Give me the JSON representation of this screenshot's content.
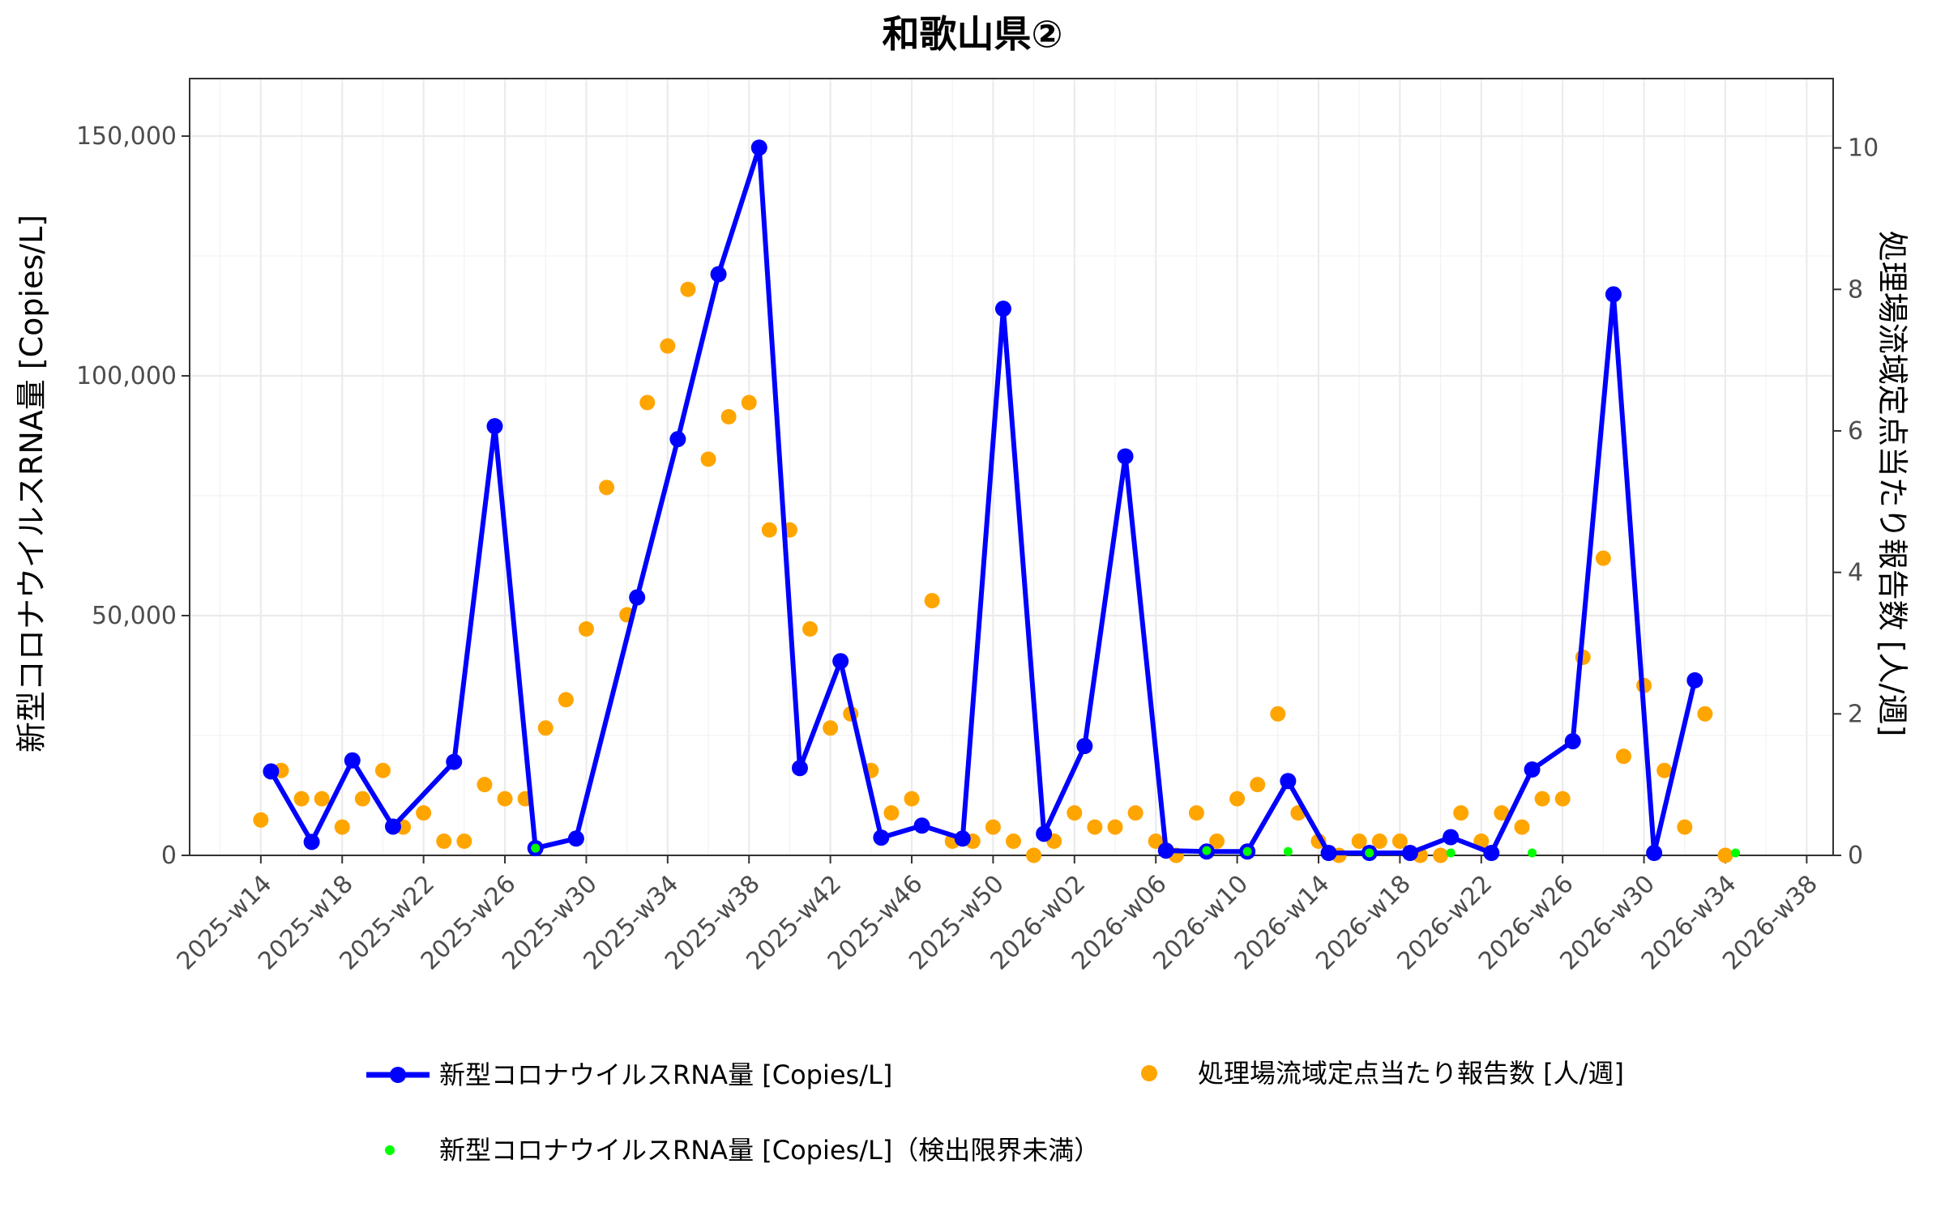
{
  "chart_data": {
    "type": "line",
    "title": "和歌山県②",
    "ylabel_left": "新型コロナウイルスRNA量 [Copies/L]",
    "ylabel_right": "処理場流域定点当たり報告数 [人/週]",
    "y_left_ticks": [
      0,
      50000,
      100000,
      150000
    ],
    "y_left_tick_labels": [
      "0",
      "50,000",
      "100,000",
      "150,000"
    ],
    "y_left_range": [
      0,
      162000
    ],
    "y_right_ticks": [
      0,
      2,
      4,
      6,
      8,
      10
    ],
    "y_right_tick_labels": [
      "0",
      "2",
      "4",
      "6",
      "8",
      "10"
    ],
    "y_right_range": [
      0,
      10.98
    ],
    "x_range": [
      -3.5,
      77.3
    ],
    "x_ticks": [
      0,
      4,
      8,
      12,
      16,
      20,
      24,
      28,
      32,
      36,
      40,
      44,
      48,
      52,
      56,
      60,
      64,
      68,
      72,
      76
    ],
    "x_tick_labels": [
      "2025-w14",
      "2025-w18",
      "2025-w22",
      "2025-w26",
      "2025-w30",
      "2025-w34",
      "2025-w38",
      "2025-w42",
      "2025-w46",
      "2025-w50",
      "2026-w02",
      "2026-w06",
      "2026-w10",
      "2026-w14",
      "2026-w18",
      "2026-w22",
      "2026-w26",
      "2026-w30",
      "2026-w34",
      "2026-w38"
    ],
    "grid": true,
    "legend_position": "bottom",
    "series": [
      {
        "name": "新型コロナウイルスRNA量 [Copies/L]",
        "axis": "left",
        "color": "#0000ff",
        "style": "line+points",
        "x": [
          0.5,
          2.5,
          4.5,
          6.5,
          9.5,
          11.5,
          13.5,
          15.5,
          18.5,
          20.5,
          22.5,
          24.5,
          26.5,
          28.5,
          30.5,
          32.5,
          34.5,
          36.5,
          38.5,
          40.5,
          42.5,
          44.5,
          46.5,
          48.5,
          50.5,
          52.5,
          54.5,
          56.5,
          58.5,
          60.5,
          62.5,
          64.5,
          66.5,
          68.5,
          70.5,
          72.5
        ],
        "y": [
          17500,
          2800,
          19800,
          6000,
          19500,
          89500,
          1500,
          3500,
          53800,
          86800,
          121200,
          147600,
          18200,
          40500,
          3700,
          6200,
          3500,
          114000,
          4500,
          22800,
          83200,
          1000,
          800,
          800,
          15500,
          500,
          500,
          500,
          3800,
          500,
          17900,
          23800,
          117000,
          500,
          36500,
          null
        ]
      },
      {
        "name": "新型コロナウイルスRNA量 [Copies/L]（検出限界未満）",
        "axis": "left",
        "color": "#00ff00",
        "style": "points",
        "x": [
          13.5,
          46.5,
          48.5,
          50.5,
          54.5,
          58.5,
          62.5,
          72.5
        ],
        "y": [
          1500,
          1000,
          800,
          800,
          500,
          500,
          500,
          500
        ]
      },
      {
        "name": "処理場流域定点当たり報告数 [人/週]",
        "axis": "right",
        "color": "#ffa500",
        "style": "points",
        "x": [
          0,
          1,
          2,
          3,
          4,
          5,
          6,
          7,
          8,
          9,
          10,
          11,
          12,
          13,
          14,
          15,
          16,
          17,
          18,
          19,
          20,
          21,
          22,
          23,
          24,
          25,
          26,
          27,
          28,
          29,
          30,
          31,
          32,
          33,
          34,
          35,
          36,
          37,
          38,
          39,
          40,
          41,
          42,
          43,
          44,
          45,
          46,
          47,
          48,
          49,
          50,
          51,
          52,
          53,
          54,
          55,
          56,
          57,
          58,
          59,
          60,
          61,
          62,
          63,
          64,
          65,
          66,
          67,
          68,
          69,
          70,
          71,
          72
        ],
        "y": [
          0.5,
          1.2,
          0.8,
          0.8,
          0.4,
          0.8,
          1.2,
          0.4,
          0.6,
          0.2,
          0.2,
          1.0,
          0.8,
          0.8,
          1.8,
          2.2,
          3.2,
          5.2,
          3.4,
          6.4,
          7.2,
          8.0,
          5.6,
          6.2,
          6.4,
          4.6,
          4.6,
          3.2,
          1.8,
          2.0,
          1.2,
          0.6,
          0.8,
          3.6,
          0.2,
          0.2,
          0.4,
          0.2,
          0.0,
          0.2,
          0.6,
          0.4,
          0.4,
          0.6,
          0.2,
          0.0,
          0.6,
          0.2,
          0.8,
          1.0,
          2.0,
          0.6,
          0.2,
          0.0,
          0.2,
          0.2,
          0.2,
          0.0,
          0.0,
          0.6,
          0.2,
          0.6,
          0.4,
          0.8,
          0.8,
          2.8,
          4.2,
          1.4,
          2.4,
          1.2,
          0.4,
          2.0,
          0.0
        ]
      }
    ]
  }
}
